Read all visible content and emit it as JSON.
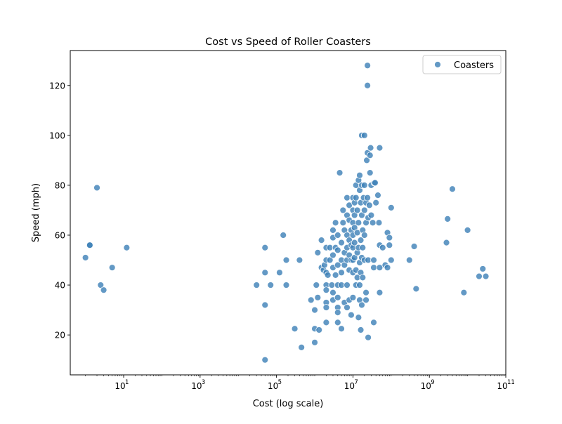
{
  "chart_data": {
    "type": "scatter",
    "title": "Cost vs Speed of Roller Coasters",
    "xlabel": "Cost (log scale)",
    "ylabel": "Speed (mph)",
    "xscale": "log",
    "xlim": [
      0.4,
      100000000000
    ],
    "ylim": [
      4,
      134
    ],
    "xticks": [
      10,
      1000,
      100000,
      10000000,
      1000000000,
      100000000000
    ],
    "xtick_labels": [
      {
        "base": "10",
        "exp": "1"
      },
      {
        "base": "10",
        "exp": "3"
      },
      {
        "base": "10",
        "exp": "5"
      },
      {
        "base": "10",
        "exp": "7"
      },
      {
        "base": "10",
        "exp": "9"
      },
      {
        "base": "10",
        "exp": "11"
      }
    ],
    "yticks": [
      20,
      40,
      60,
      80,
      100,
      120
    ],
    "ytick_labels": [
      "20",
      "40",
      "60",
      "80",
      "100",
      "120"
    ],
    "grid": false,
    "legend": {
      "position": "top-right",
      "entries": [
        "Coasters"
      ]
    },
    "colors": {
      "point": "#3c7fb6",
      "point_edge": "#ffffff"
    },
    "series": [
      {
        "name": "Coasters",
        "points": [
          [
            1,
            51
          ],
          [
            1.3,
            56
          ],
          [
            1.3,
            56
          ],
          [
            2,
            79
          ],
          [
            2.5,
            40
          ],
          [
            3,
            38
          ],
          [
            5,
            47
          ],
          [
            12,
            55
          ],
          [
            30000,
            40
          ],
          [
            50000,
            55
          ],
          [
            50000,
            45
          ],
          [
            50000,
            32
          ],
          [
            50000,
            10
          ],
          [
            70000,
            40
          ],
          [
            120000,
            45
          ],
          [
            150000,
            60
          ],
          [
            180000,
            50
          ],
          [
            180000,
            40
          ],
          [
            300000,
            22.5
          ],
          [
            400000,
            50
          ],
          [
            450000,
            15
          ],
          [
            800000,
            34
          ],
          [
            1000000,
            30
          ],
          [
            1000000,
            17
          ],
          [
            1000000,
            22.5
          ],
          [
            1100000,
            40
          ],
          [
            1200000,
            53
          ],
          [
            1200000,
            35
          ],
          [
            1300000,
            22
          ],
          [
            1500000,
            47
          ],
          [
            1500000,
            58
          ],
          [
            1700000,
            46
          ],
          [
            1800000,
            48
          ],
          [
            2000000,
            50
          ],
          [
            2000000,
            55
          ],
          [
            2000000,
            45
          ],
          [
            2000000,
            40
          ],
          [
            2000000,
            38
          ],
          [
            2000000,
            33
          ],
          [
            2000000,
            31
          ],
          [
            2000000,
            25
          ],
          [
            2200000,
            44
          ],
          [
            2500000,
            55
          ],
          [
            2500000,
            50
          ],
          [
            2800000,
            40
          ],
          [
            3000000,
            62
          ],
          [
            3000000,
            59
          ],
          [
            3000000,
            52
          ],
          [
            3000000,
            47
          ],
          [
            3000000,
            37
          ],
          [
            3000000,
            34
          ],
          [
            3500000,
            65
          ],
          [
            3500000,
            55
          ],
          [
            3500000,
            44
          ],
          [
            4000000,
            60
          ],
          [
            4000000,
            54
          ],
          [
            4000000,
            48
          ],
          [
            4000000,
            40
          ],
          [
            4000000,
            35
          ],
          [
            4000000,
            31
          ],
          [
            4000000,
            29
          ],
          [
            4000000,
            25
          ],
          [
            4500000,
            85
          ],
          [
            5000000,
            57
          ],
          [
            5000000,
            50
          ],
          [
            5000000,
            45
          ],
          [
            5000000,
            40
          ],
          [
            5000000,
            22.5
          ],
          [
            5500000,
            70
          ],
          [
            5500000,
            65
          ],
          [
            6000000,
            62
          ],
          [
            6000000,
            53
          ],
          [
            6000000,
            48
          ],
          [
            6000000,
            33
          ],
          [
            7000000,
            75
          ],
          [
            7000000,
            68
          ],
          [
            7000000,
            60
          ],
          [
            7000000,
            55
          ],
          [
            7000000,
            50
          ],
          [
            7000000,
            40
          ],
          [
            7000000,
            31
          ],
          [
            8000000,
            72
          ],
          [
            8000000,
            66
          ],
          [
            8000000,
            58
          ],
          [
            8000000,
            52
          ],
          [
            8000000,
            46
          ],
          [
            8000000,
            34
          ],
          [
            9000000,
            62
          ],
          [
            9000000,
            56
          ],
          [
            9000000,
            50
          ],
          [
            9000000,
            28
          ],
          [
            10000000,
            75
          ],
          [
            10000000,
            70
          ],
          [
            10000000,
            65
          ],
          [
            10000000,
            60
          ],
          [
            10000000,
            55
          ],
          [
            10000000,
            50
          ],
          [
            10000000,
            45
          ],
          [
            10000000,
            35
          ],
          [
            11000000,
            73
          ],
          [
            11000000,
            68
          ],
          [
            11000000,
            63
          ],
          [
            11000000,
            57
          ],
          [
            11000000,
            51
          ],
          [
            12000000,
            80
          ],
          [
            12000000,
            75
          ],
          [
            12000000,
            46
          ],
          [
            12000000,
            40
          ],
          [
            13000000,
            70
          ],
          [
            13000000,
            61
          ],
          [
            13000000,
            53
          ],
          [
            13000000,
            43
          ],
          [
            14000000,
            82
          ],
          [
            14000000,
            65
          ],
          [
            14000000,
            55
          ],
          [
            14000000,
            27
          ],
          [
            15000000,
            84
          ],
          [
            15000000,
            78
          ],
          [
            15000000,
            49
          ],
          [
            15000000,
            40
          ],
          [
            15000000,
            34
          ],
          [
            16000000,
            73
          ],
          [
            16000000,
            58
          ],
          [
            16000000,
            45
          ],
          [
            16000000,
            22
          ],
          [
            17000000,
            100
          ],
          [
            17000000,
            80
          ],
          [
            17000000,
            68
          ],
          [
            17000000,
            51
          ],
          [
            17000000,
            32
          ],
          [
            18000000,
            62
          ],
          [
            18000000,
            55
          ],
          [
            18000000,
            43
          ],
          [
            19000000,
            75
          ],
          [
            20000000,
            100
          ],
          [
            20000000,
            80
          ],
          [
            20000000,
            70
          ],
          [
            20000000,
            60
          ],
          [
            20000000,
            50
          ],
          [
            22000000,
            73
          ],
          [
            22000000,
            65
          ],
          [
            22000000,
            37
          ],
          [
            22000000,
            34
          ],
          [
            23000000,
            90
          ],
          [
            24000000,
            128
          ],
          [
            24000000,
            120
          ],
          [
            24000000,
            93
          ],
          [
            24000000,
            75
          ],
          [
            25000000,
            67
          ],
          [
            25000000,
            50
          ],
          [
            25000000,
            19
          ],
          [
            27000000,
            72
          ],
          [
            28000000,
            92
          ],
          [
            28000000,
            85
          ],
          [
            29000000,
            95
          ],
          [
            30000000,
            68
          ],
          [
            30000000,
            80
          ],
          [
            33000000,
            65
          ],
          [
            35000000,
            50
          ],
          [
            35000000,
            47
          ],
          [
            35000000,
            25
          ],
          [
            36000000,
            81
          ],
          [
            38000000,
            81
          ],
          [
            40000000,
            73
          ],
          [
            45000000,
            76
          ],
          [
            48000000,
            65
          ],
          [
            50000000,
            95
          ],
          [
            50000000,
            56
          ],
          [
            50000000,
            47
          ],
          [
            50000000,
            37
          ],
          [
            60000000,
            55
          ],
          [
            70000000,
            48
          ],
          [
            80000000,
            61
          ],
          [
            80000000,
            47
          ],
          [
            90000000,
            59
          ],
          [
            90000000,
            56
          ],
          [
            100000000,
            71
          ],
          [
            100000000,
            50
          ],
          [
            300000000,
            50
          ],
          [
            400000000,
            55.5
          ],
          [
            450000000,
            38.5
          ],
          [
            2800000000,
            57
          ],
          [
            3000000000,
            66.5
          ],
          [
            4000000000,
            78.5
          ],
          [
            8000000000,
            37
          ],
          [
            10000000000,
            62
          ],
          [
            20000000000,
            43.5
          ],
          [
            25000000000,
            46.5
          ],
          [
            30000000000,
            43.5
          ]
        ]
      }
    ]
  }
}
